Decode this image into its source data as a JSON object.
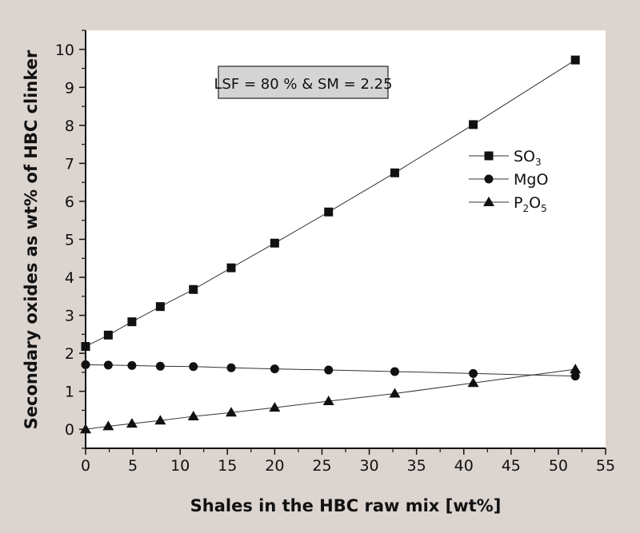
{
  "chart_data": {
    "type": "line",
    "title": "",
    "xlabel": "Shales in the HBC raw mix [wt%]",
    "ylabel": "Secondary oxides as wt% of HBC clinker",
    "xlim": [
      0,
      55
    ],
    "ylim": [
      -0.5,
      10.5
    ],
    "xticks": [
      0,
      5,
      10,
      15,
      20,
      25,
      30,
      35,
      40,
      45,
      50,
      55
    ],
    "yticks": [
      0,
      1,
      2,
      3,
      4,
      5,
      6,
      7,
      8,
      9,
      10
    ],
    "annotation": "LSF = 80 % & SM = 2.25",
    "legend_position": "right",
    "x": [
      0,
      2.4,
      4.9,
      7.9,
      11.4,
      15.4,
      20,
      25.7,
      32.7,
      41,
      51.8
    ],
    "series": [
      {
        "name": "SO3",
        "label_main": "SO",
        "label_sub": "3",
        "marker": "square",
        "values": [
          2.18,
          2.48,
          2.83,
          3.23,
          3.68,
          4.25,
          4.9,
          5.72,
          6.75,
          8.02,
          9.72
        ]
      },
      {
        "name": "MgO",
        "label_main": "MgO",
        "label_sub": "",
        "marker": "circle",
        "values": [
          1.7,
          1.69,
          1.68,
          1.66,
          1.65,
          1.62,
          1.59,
          1.56,
          1.52,
          1.47,
          1.4
        ]
      },
      {
        "name": "P2O5",
        "label_main": "P",
        "label_sub": "2",
        "label_main2": "O",
        "label_sub2": "5",
        "marker": "triangle",
        "values": [
          0,
          0.08,
          0.15,
          0.23,
          0.34,
          0.44,
          0.57,
          0.74,
          0.94,
          1.22,
          1.58
        ]
      }
    ],
    "colors": {
      "background": "#dcd4cf",
      "plot": "#ffffff",
      "annotation_box": "#d4d4d4",
      "line": "#333333",
      "marker": "#111111"
    }
  }
}
